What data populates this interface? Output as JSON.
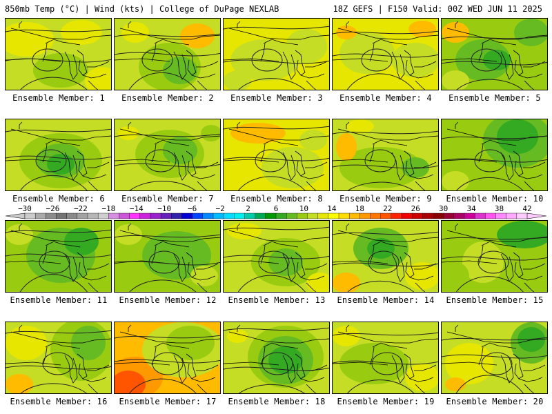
{
  "header": {
    "left": "850mb Temp (°C) | Wind (kts) | College of DuPage NEXLAB",
    "right": "18Z GEFS | F150 Valid: 00Z WED JUN 11 2025"
  },
  "panels": [
    {
      "label": "Ensemble Member: 1"
    },
    {
      "label": "Ensemble Member: 2"
    },
    {
      "label": "Ensemble Member: 3"
    },
    {
      "label": "Ensemble Member: 4"
    },
    {
      "label": "Ensemble Member: 5"
    },
    {
      "label": "Ensemble Member: 6"
    },
    {
      "label": "Ensemble Member: 7"
    },
    {
      "label": "Ensemble Member: 8"
    },
    {
      "label": "Ensemble Member: 9"
    },
    {
      "label": "Ensemble Member: 10"
    },
    {
      "label": "Ensemble Member: 11"
    },
    {
      "label": "Ensemble Member: 12"
    },
    {
      "label": "Ensemble Member: 13"
    },
    {
      "label": "Ensemble Member: 14"
    },
    {
      "label": "Ensemble Member: 15"
    },
    {
      "label": "Ensemble Member: 16"
    },
    {
      "label": "Ensemble Member: 17"
    },
    {
      "label": "Ensemble Member: 18"
    },
    {
      "label": "Ensemble Member: 19"
    },
    {
      "label": "Ensemble Member: 20"
    }
  ],
  "colorbar": {
    "tick_labels": [
      "-30",
      "-26",
      "-22",
      "-18",
      "-14",
      "-10",
      "-6",
      "-2",
      "2",
      "6",
      "10",
      "14",
      "18",
      "22",
      "26",
      "30",
      "34",
      "38",
      "42"
    ],
    "colors": [
      "#cccccc",
      "#aaaaaa",
      "#8c8c8c",
      "#747474",
      "#8a8a8a",
      "#a2a2a2",
      "#b6b6b6",
      "#cfcfcf",
      "#d68fe0",
      "#cc55d8",
      "#ff33ff",
      "#cc22dd",
      "#9922cc",
      "#6622bb",
      "#3322aa",
      "#0000d2",
      "#0044ff",
      "#0088ff",
      "#00bbff",
      "#00ddff",
      "#00eeee",
      "#00ccaa",
      "#00aa55",
      "#009900",
      "#33aa22",
      "#66bb22",
      "#99cc11",
      "#c5dd24",
      "#e6e600",
      "#ffff00",
      "#ffdd00",
      "#ffbb00",
      "#ff9900",
      "#ff7700",
      "#ff5500",
      "#ff2200",
      "#ee0000",
      "#cc0000",
      "#aa0000",
      "#880000",
      "#990033",
      "#aa0066",
      "#cc0099",
      "#dd33cc",
      "#ff55ee",
      "#ff88ff",
      "#ffaaff",
      "#ffccff"
    ]
  }
}
